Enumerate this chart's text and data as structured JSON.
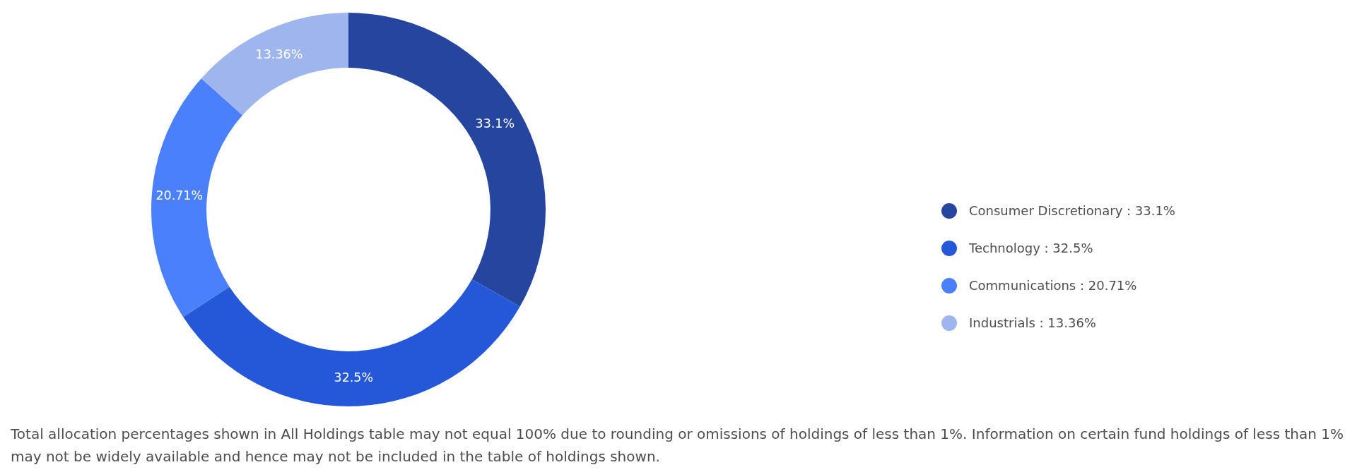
{
  "chart_data": {
    "type": "donut",
    "categories": [
      "Consumer Discretionary",
      "Technology",
      "Communications",
      "Industrials"
    ],
    "values": [
      33.1,
      32.5,
      20.71,
      13.36
    ],
    "colors": [
      "#26459e",
      "#2557d9",
      "#4a80fc",
      "#9fb5ee"
    ],
    "value_labels": [
      "33.1%",
      "32.5%",
      "20.71%",
      "13.36%"
    ],
    "legend": "right",
    "annotations": [
      "Total allocation percentages shown in All Holdings table may not equal 100% due to rounding or omissions of holdings of less than 1%. Information on certain fund holdings of less than 1% may not be widely available and hence may not be included in the table of holdings shown."
    ]
  }
}
